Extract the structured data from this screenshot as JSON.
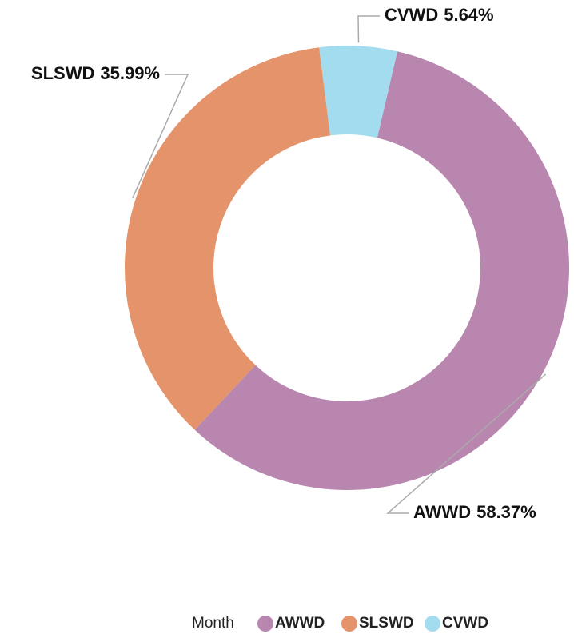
{
  "chart_data": {
    "type": "pie",
    "categories": [
      "AWWD",
      "SLSWD",
      "CVWD"
    ],
    "values": [
      58.37,
      35.99,
      5.64
    ],
    "value_labels": [
      "58.37%",
      "35.99%",
      "5.64%"
    ],
    "colors": [
      "#b886ae",
      "#e5936a",
      "#a2dcee"
    ],
    "legend_title": "Month",
    "legend": "bottom"
  }
}
